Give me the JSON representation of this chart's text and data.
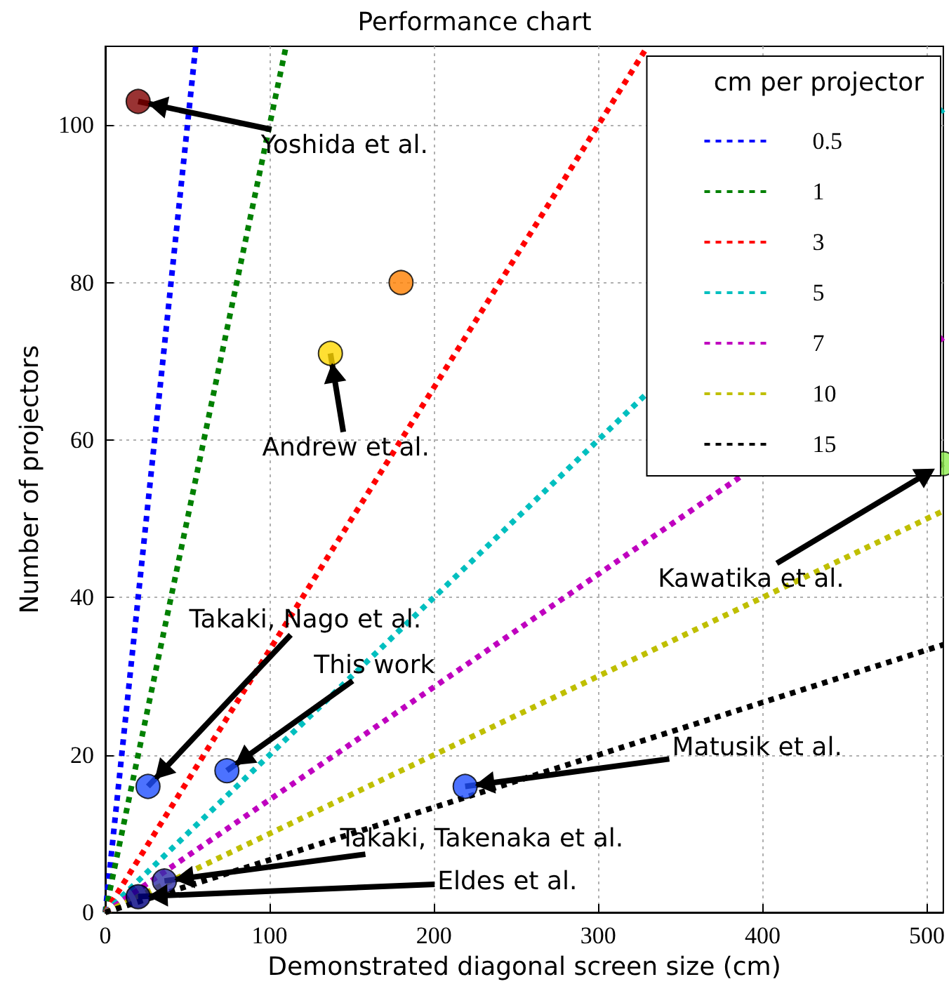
{
  "chart_data": {
    "type": "line",
    "title": "Performance chart",
    "xlabel": "Demonstrated diagonal screen size (cm)",
    "ylabel": "Number of projectors",
    "legend_title": "cm per projector",
    "xlim": [
      0,
      510
    ],
    "ylim": [
      0,
      110
    ],
    "xticks": [
      0,
      100,
      200,
      300,
      400,
      500
    ],
    "yticks": [
      0,
      20,
      40,
      60,
      80,
      100
    ],
    "grid": true,
    "legend": "top right",
    "line_style": "dotted",
    "marker": "none",
    "series": [
      {
        "name": "0.5",
        "color": "#0000ff",
        "x": [
          0,
          55
        ],
        "values": [
          0,
          110
        ]
      },
      {
        "name": "1",
        "color": "#008000",
        "x": [
          0,
          110
        ],
        "values": [
          0,
          110
        ]
      },
      {
        "name": "3",
        "color": "#ff0000",
        "x": [
          0,
          330
        ],
        "values": [
          0,
          110
        ]
      },
      {
        "name": "5",
        "color": "#00bfbf",
        "x": [
          0,
          510
        ],
        "values": [
          0,
          102
        ]
      },
      {
        "name": "7",
        "color": "#bf00bf",
        "x": [
          0,
          510
        ],
        "values": [
          0,
          73
        ]
      },
      {
        "name": "10",
        "color": "#bfbf00",
        "x": [
          0,
          510
        ],
        "values": [
          0,
          51
        ]
      },
      {
        "name": "15",
        "color": "#000000",
        "x": [
          0,
          510
        ],
        "values": [
          0,
          34
        ]
      },
      {
        "type": "scatter",
        "marker": "circle",
        "x": [
          20,
          137,
          180,
          510,
          26,
          74,
          219,
          36,
          20
        ],
        "values": [
          103,
          71,
          80,
          57,
          16,
          18,
          16,
          4,
          2
        ],
        "colors": [
          "#800000",
          "#ffd700",
          "#ff8000",
          "#90ee50",
          "#1f4fff",
          "#1f4fff",
          "#1f4fff",
          "#3030a8",
          "#000080"
        ]
      }
    ],
    "annotations": [
      {
        "text": "Yoshida et al.",
        "x": 20,
        "y": 103
      },
      {
        "text": "Andrew et al.",
        "x": 137,
        "y": 71
      },
      {
        "text": "Kawatika et al.",
        "x": 510,
        "y": 57
      },
      {
        "text": "Takaki, Nago et al.",
        "x": 26,
        "y": 16
      },
      {
        "text": "This work",
        "x": 74,
        "y": 18
      },
      {
        "text": "Matusik et al.",
        "x": 219,
        "y": 16
      },
      {
        "text": "Takaki, Takenaka et al.",
        "x": 36,
        "y": 4
      },
      {
        "text": "Eldes et al.",
        "x": 20,
        "y": 2
      }
    ]
  }
}
